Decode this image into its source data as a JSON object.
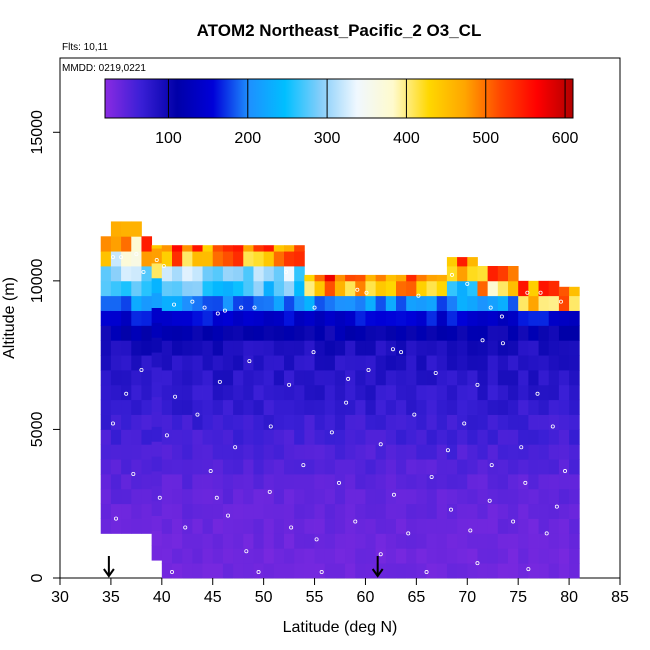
{
  "chart_data": {
    "type": "heatmap",
    "title": "ATOM2 Northeast_Pacific_2 O3_CL",
    "annotations": [
      "Flts: 10,11",
      "MMDD: 0219,0221"
    ],
    "xlabel": "Latitude (deg N)",
    "ylabel": "Altitude (m)",
    "xlim": [
      30,
      85
    ],
    "ylim": [
      0,
      17500
    ],
    "x_ticks": [
      30,
      35,
      40,
      45,
      50,
      55,
      60,
      65,
      70,
      75,
      80,
      85
    ],
    "y_ticks": [
      0,
      5000,
      10000,
      15000
    ],
    "colorbar": {
      "range": [
        20,
        610
      ],
      "ticks": [
        100,
        200,
        300,
        400,
        500,
        600
      ],
      "colors": [
        "#8a2be2",
        "#3a1fd6",
        "#0000a8",
        "#0000d8",
        "#1e90ff",
        "#00bfff",
        "#87cefa",
        "#f0f8ff",
        "#fffacd",
        "#ffd700",
        "#ffa500",
        "#ff4500",
        "#ff0000",
        "#b20000"
      ]
    },
    "arrows_latitude": [
      34.8,
      61.2
    ],
    "column_latitude_bins": [
      34.5,
      35.5,
      36.5,
      37.5,
      38.5,
      39.5,
      40.5,
      41.5,
      42.5,
      43.5,
      44.5,
      45.5,
      46.5,
      47.5,
      48.5,
      49.5,
      50.5,
      51.5,
      52.5,
      53.5,
      54.5,
      55.5,
      56.5,
      57.5,
      58.5,
      59.5,
      60.5,
      61.5,
      62.5,
      63.5,
      64.5,
      65.5,
      66.5,
      67.5,
      68.5,
      69.5,
      70.5,
      71.5,
      72.5,
      73.5,
      74.5,
      75.5,
      76.5,
      77.5,
      78.5,
      79.5,
      80.5
    ],
    "column_top_altitude_m": [
      11500,
      12000,
      12000,
      12000,
      11500,
      11200,
      11200,
      11200,
      11200,
      11200,
      11200,
      11200,
      11200,
      11200,
      11200,
      11200,
      11200,
      11200,
      11200,
      11200,
      10200,
      10200,
      10200,
      10200,
      10200,
      10200,
      10200,
      10200,
      10200,
      10200,
      10200,
      10200,
      10200,
      10200,
      10800,
      10800,
      10800,
      10500,
      10500,
      10500,
      10500,
      10000,
      10000,
      10000,
      10000,
      9800,
      9800
    ],
    "profile_altitude_m": [
      500,
      1500,
      2500,
      3500,
      4500,
      5500,
      6500,
      7500,
      8000,
      8500,
      9000,
      9500,
      10000,
      10500,
      11000,
      11500,
      12000
    ],
    "profile_o3_ppbv": [
      35,
      38,
      42,
      48,
      58,
      68,
      78,
      85,
      95,
      125,
      175,
      235,
      290,
      330,
      385,
      440,
      560
    ],
    "observation_points": [
      [
        35.2,
        10800
      ],
      [
        36.0,
        10800
      ],
      [
        37.5,
        10900
      ],
      [
        38.2,
        10300
      ],
      [
        39.5,
        10700
      ],
      [
        40.2,
        10500
      ],
      [
        41.2,
        9200
      ],
      [
        43.0,
        9300
      ],
      [
        44.2,
        9100
      ],
      [
        45.5,
        8900
      ],
      [
        46.2,
        9000
      ],
      [
        47.8,
        9100
      ],
      [
        49.1,
        9100
      ],
      [
        52.2,
        10300
      ],
      [
        55.0,
        9100
      ],
      [
        59.2,
        9700
      ],
      [
        60.1,
        9600
      ],
      [
        65.2,
        9500
      ],
      [
        68.5,
        10200
      ],
      [
        70.0,
        9900
      ],
      [
        72.3,
        9100
      ],
      [
        73.4,
        8800
      ],
      [
        75.9,
        9600
      ],
      [
        77.2,
        9600
      ],
      [
        79.2,
        9300
      ],
      [
        35.2,
        5200
      ],
      [
        36.5,
        6200
      ],
      [
        38.0,
        7000
      ],
      [
        40.5,
        4800
      ],
      [
        41.3,
        6100
      ],
      [
        43.5,
        5500
      ],
      [
        45.7,
        6600
      ],
      [
        47.2,
        4400
      ],
      [
        48.6,
        7300
      ],
      [
        50.7,
        5100
      ],
      [
        52.5,
        6500
      ],
      [
        54.9,
        7600
      ],
      [
        56.7,
        4900
      ],
      [
        58.1,
        5900
      ],
      [
        60.3,
        7000
      ],
      [
        61.5,
        4500
      ],
      [
        63.5,
        7600
      ],
      [
        64.8,
        5500
      ],
      [
        66.9,
        6900
      ],
      [
        68.1,
        4300
      ],
      [
        69.7,
        5200
      ],
      [
        71.0,
        6500
      ],
      [
        72.4,
        3800
      ],
      [
        73.5,
        7900
      ],
      [
        75.3,
        4400
      ],
      [
        76.9,
        6200
      ],
      [
        78.4,
        5100
      ],
      [
        79.6,
        3600
      ],
      [
        35.5,
        2000
      ],
      [
        37.2,
        3500
      ],
      [
        38.5,
        900
      ],
      [
        39.8,
        2700
      ],
      [
        42.3,
        1700
      ],
      [
        44.8,
        3600
      ],
      [
        46.5,
        2100
      ],
      [
        48.3,
        900
      ],
      [
        50.6,
        2900
      ],
      [
        52.7,
        1700
      ],
      [
        55.2,
        1300
      ],
      [
        57.4,
        3200
      ],
      [
        59.0,
        1900
      ],
      [
        61.5,
        800
      ],
      [
        62.8,
        2800
      ],
      [
        64.2,
        1500
      ],
      [
        66.5,
        3400
      ],
      [
        68.4,
        2300
      ],
      [
        70.3,
        1600
      ],
      [
        71.0,
        500
      ],
      [
        72.2,
        2600
      ],
      [
        74.5,
        1900
      ],
      [
        75.7,
        3200
      ],
      [
        77.8,
        1500
      ],
      [
        78.8,
        2400
      ],
      [
        41.0,
        200
      ],
      [
        49.5,
        200
      ],
      [
        55.7,
        200
      ],
      [
        66.0,
        200
      ],
      [
        76.0,
        300
      ],
      [
        71.5,
        8000
      ],
      [
        62.7,
        7700
      ],
      [
        58.3,
        6700
      ],
      [
        53.9,
        3800
      ],
      [
        45.4,
        2700
      ]
    ]
  }
}
